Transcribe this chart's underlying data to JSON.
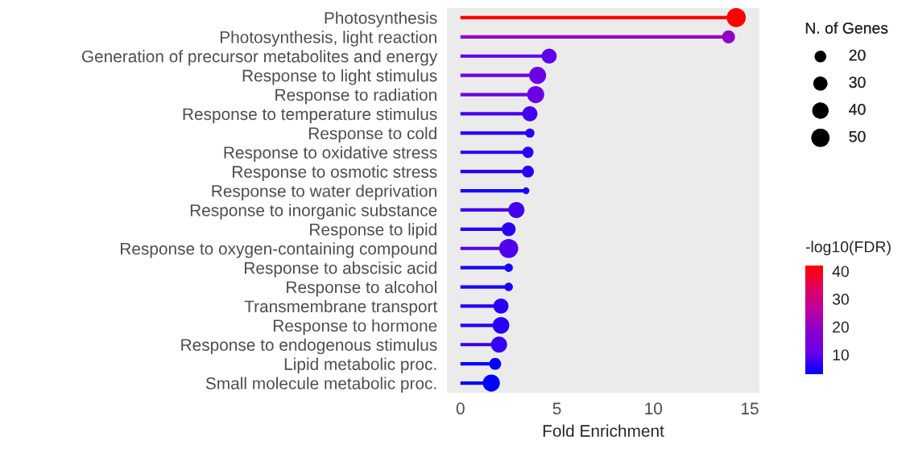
{
  "chart_data": {
    "type": "lollipop",
    "orientation": "horizontal",
    "xlabel": "Fold Enrichment",
    "categories": [
      "Photosynthesis",
      "Photosynthesis, light reaction",
      "Generation of precursor metabolites and energy",
      "Response to light stimulus",
      "Response to radiation",
      "Response to temperature stimulus",
      "Response to cold",
      "Response to oxidative stress",
      "Response to osmotic stress",
      "Response to water deprivation",
      "Response to inorganic substance",
      "Response to lipid",
      "Response to oxygen-containing compound",
      "Response to abscisic acid",
      "Response to alcohol",
      "Transmembrane transport",
      "Response to hormone",
      "Response to endogenous stimulus",
      "Lipid metabolic proc.",
      "Small molecule metabolic proc."
    ],
    "values": [
      14.3,
      13.9,
      4.6,
      4.0,
      3.9,
      3.6,
      3.6,
      3.5,
      3.5,
      3.4,
      2.9,
      2.5,
      2.5,
      2.5,
      2.5,
      2.1,
      2.1,
      2.0,
      1.8,
      1.6
    ],
    "sizes": [
      56,
      26,
      35,
      45,
      45,
      35,
      13,
      19,
      22,
      7,
      40,
      30,
      56,
      11,
      11,
      35,
      43,
      40,
      22,
      45
    ],
    "size_legend": [
      20,
      30,
      40,
      50
    ],
    "legend_title": "N. of Genes",
    "cvalues": [
      42,
      20,
      10,
      11,
      11,
      8,
      6,
      6,
      6,
      5,
      8,
      6,
      9,
      5,
      5,
      6,
      6,
      7,
      3.5,
      3
    ],
    "clabel": "-log10(FDR)",
    "clim": [
      3,
      42
    ],
    "cticks": [
      10,
      20,
      30,
      40
    ],
    "xlim": [
      -0.7,
      15.5
    ],
    "xticks": [
      0,
      5,
      10,
      15
    ],
    "grid": false
  }
}
